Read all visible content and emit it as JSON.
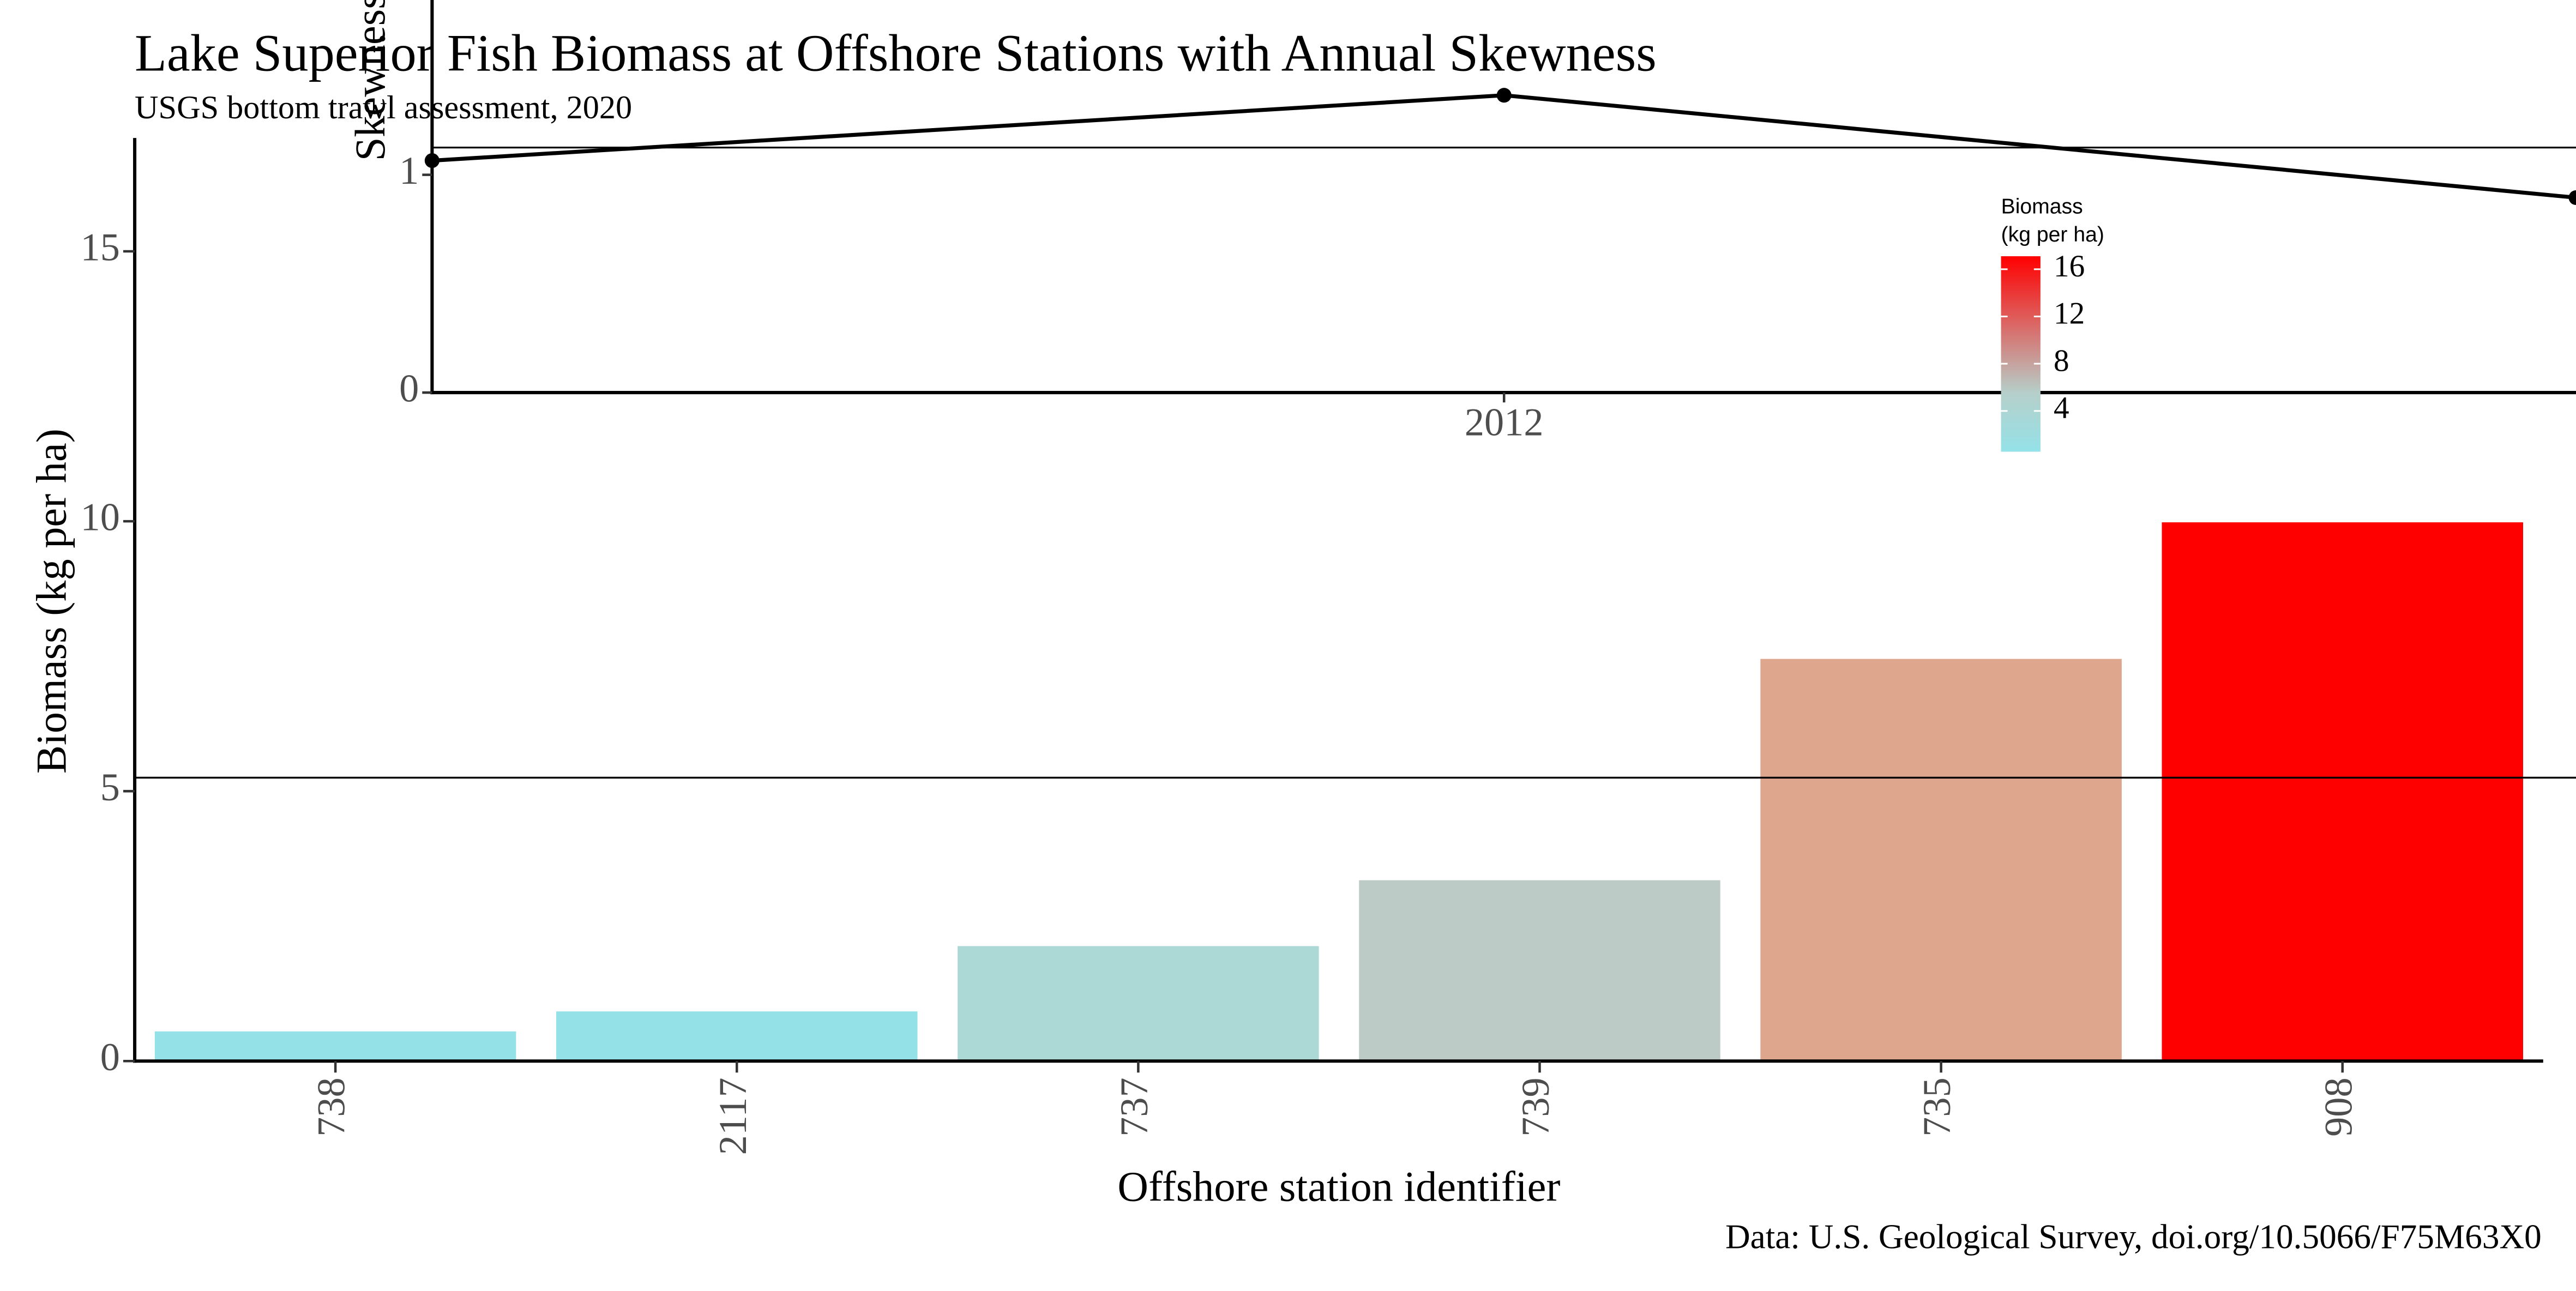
{
  "title": "Lake Superior Fish Biomass at Offshore Stations with Annual Skewness",
  "subtitle": "USGS bottom trawl assessment,  2020",
  "caption": "Data: U.S. Geological Survey, doi.org/10.5066/F75M63X0",
  "chart_data": [
    {
      "type": "bar",
      "categories": [
        "738",
        "2117",
        "737",
        "739",
        "735",
        "908"
      ],
      "values": [
        0.55,
        0.92,
        2.13,
        3.35,
        7.45,
        9.98
      ],
      "xlabel": "Offshore station identifier",
      "ylabel": "Biomass (kg per ha)",
      "ylim": [
        0,
        17.1
      ],
      "yticks": [
        0,
        5,
        10,
        15
      ],
      "reference_line": 5.25,
      "grid": false,
      "colors": [
        "#94e2e8",
        "#94e2e8",
        "#acd8d6",
        "#bccbc5",
        "#dfa68e",
        "#ff0000"
      ],
      "legend": {
        "title_lines": [
          "Biomass",
          "(kg per ha)"
        ],
        "labels": [
          "16",
          "12",
          "8",
          "4"
        ],
        "min": 0.55,
        "max": 17.1,
        "low_color": "#94e2e8",
        "high_color": "#ff0000",
        "placement": "inside-top-right"
      }
    },
    {
      "type": "line",
      "x": [
        2011,
        2012,
        2013
      ],
      "values": [
        1.05,
        1.35,
        0.88
      ],
      "xticks": [
        "2012"
      ],
      "yticks": [
        0,
        1
      ],
      "ylabel": "Skewness",
      "ylim": [
        0,
        1.35
      ],
      "reference_line": 1.11,
      "line_color": "#000000"
    }
  ]
}
